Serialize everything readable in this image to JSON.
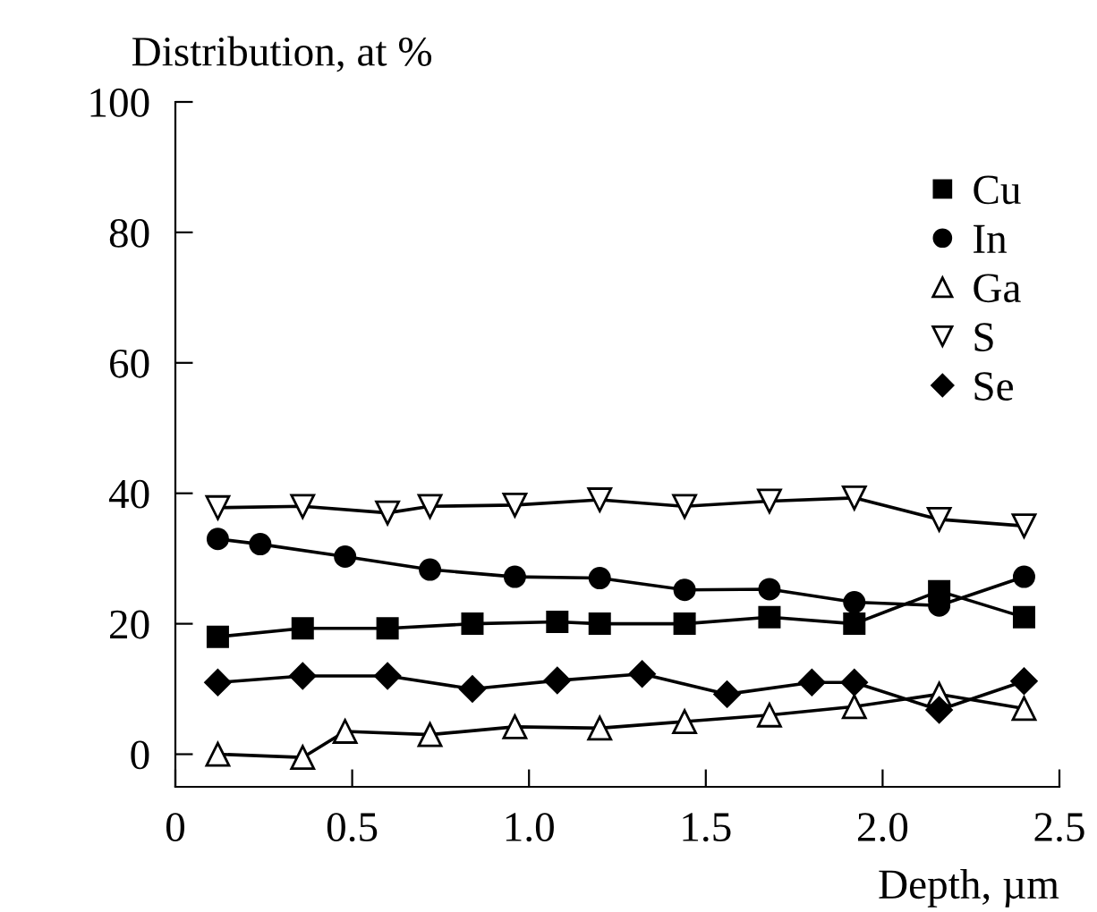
{
  "chart_data": {
    "type": "line",
    "ylabel": "Distribution, at %",
    "xlabel": "Depth, µm",
    "xlim": [
      0,
      2.5
    ],
    "ylim": [
      -5,
      100
    ],
    "xticks": [
      0,
      0.5,
      {
        "value": 1.0,
        "label": "1.0"
      },
      1.5,
      {
        "value": 2.0,
        "label": "2.0"
      },
      2.5
    ],
    "yticks": [
      0,
      20,
      40,
      60,
      80,
      100
    ],
    "grid": false,
    "legend": "top right",
    "series": [
      {
        "name": "Cu",
        "color": "#000000",
        "marker": "square",
        "x": [
          0.12,
          0.36,
          0.6,
          0.84,
          1.08,
          1.2,
          1.44,
          1.68,
          1.92,
          2.16,
          2.4
        ],
        "values": [
          18,
          19.3,
          19.3,
          20,
          20.3,
          20,
          20,
          21,
          20,
          25,
          21
        ]
      },
      {
        "name": "In",
        "color": "#000000",
        "marker": "circle",
        "x": [
          0.12,
          0.24,
          0.48,
          0.72,
          0.96,
          1.2,
          1.44,
          1.68,
          1.92,
          2.16,
          2.4
        ],
        "values": [
          33,
          32.2,
          30.3,
          28.3,
          27.2,
          27,
          25.2,
          25.3,
          23.3,
          22.8,
          27.2
        ]
      },
      {
        "name": "Ga",
        "color": "#000000",
        "marker": "triangle",
        "x": [
          0.12,
          0.36,
          0.48,
          0.72,
          0.96,
          1.2,
          1.44,
          1.68,
          1.92,
          2.16,
          2.4
        ],
        "values": [
          0,
          -0.5,
          3.5,
          3,
          4.2,
          4,
          5,
          6,
          7.3,
          9.2,
          7
        ]
      },
      {
        "name": "S",
        "color": "#000000",
        "marker": "triangle_down",
        "x": [
          0.12,
          0.36,
          0.6,
          0.72,
          0.96,
          1.2,
          1.44,
          1.68,
          1.92,
          2.16,
          2.4
        ],
        "values": [
          37.8,
          38,
          37,
          38,
          38.2,
          39,
          38,
          38.8,
          39.3,
          36,
          35
        ]
      },
      {
        "name": "Se",
        "color": "#000000",
        "marker": "diamond",
        "x": [
          0.12,
          0.36,
          0.6,
          0.84,
          1.08,
          1.32,
          1.56,
          1.8,
          1.92,
          2.16,
          2.4
        ],
        "values": [
          11,
          12,
          12,
          10,
          11.3,
          12.3,
          9.2,
          11,
          11,
          6.8,
          11.2
        ]
      }
    ]
  }
}
